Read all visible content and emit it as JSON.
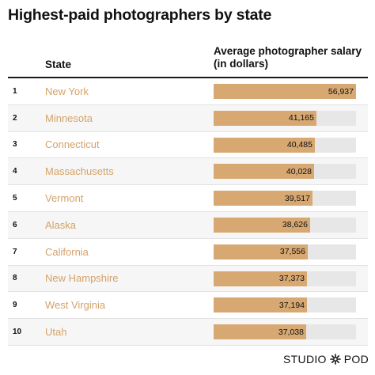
{
  "header": {
    "title": "Highest-paid photographers by state",
    "state_col": "State",
    "salary_col": "Average photographer salary (in dollars)"
  },
  "brand": {
    "left": "STUDIO",
    "right": "POD",
    "icon": "asterisk-aperture-icon"
  },
  "colors": {
    "bar": "#d7a872",
    "track": "#e7e7e7",
    "state_text": "#d4a26a"
  },
  "chart_data": {
    "type": "bar",
    "title": "Highest-paid photographers by state",
    "xlabel": "Average photographer salary (in dollars)",
    "ylabel": "State",
    "xlim": [
      0,
      56937
    ],
    "categories": [
      "New York",
      "Minnesota",
      "Connecticut",
      "Massachusetts",
      "Vermont",
      "Alaska",
      "California",
      "New Hampshire",
      "West Virginia",
      "Utah"
    ],
    "ranks": [
      "1",
      "2",
      "3",
      "4",
      "5",
      "6",
      "7",
      "8",
      "9",
      "10"
    ],
    "values": [
      56937,
      41165,
      40485,
      40028,
      39517,
      38626,
      37556,
      37373,
      37194,
      37038
    ],
    "labels": [
      "56,937",
      "41,165",
      "40,485",
      "40,028",
      "39,517",
      "38,626",
      "37,556",
      "37,373",
      "37,194",
      "37,038"
    ]
  }
}
